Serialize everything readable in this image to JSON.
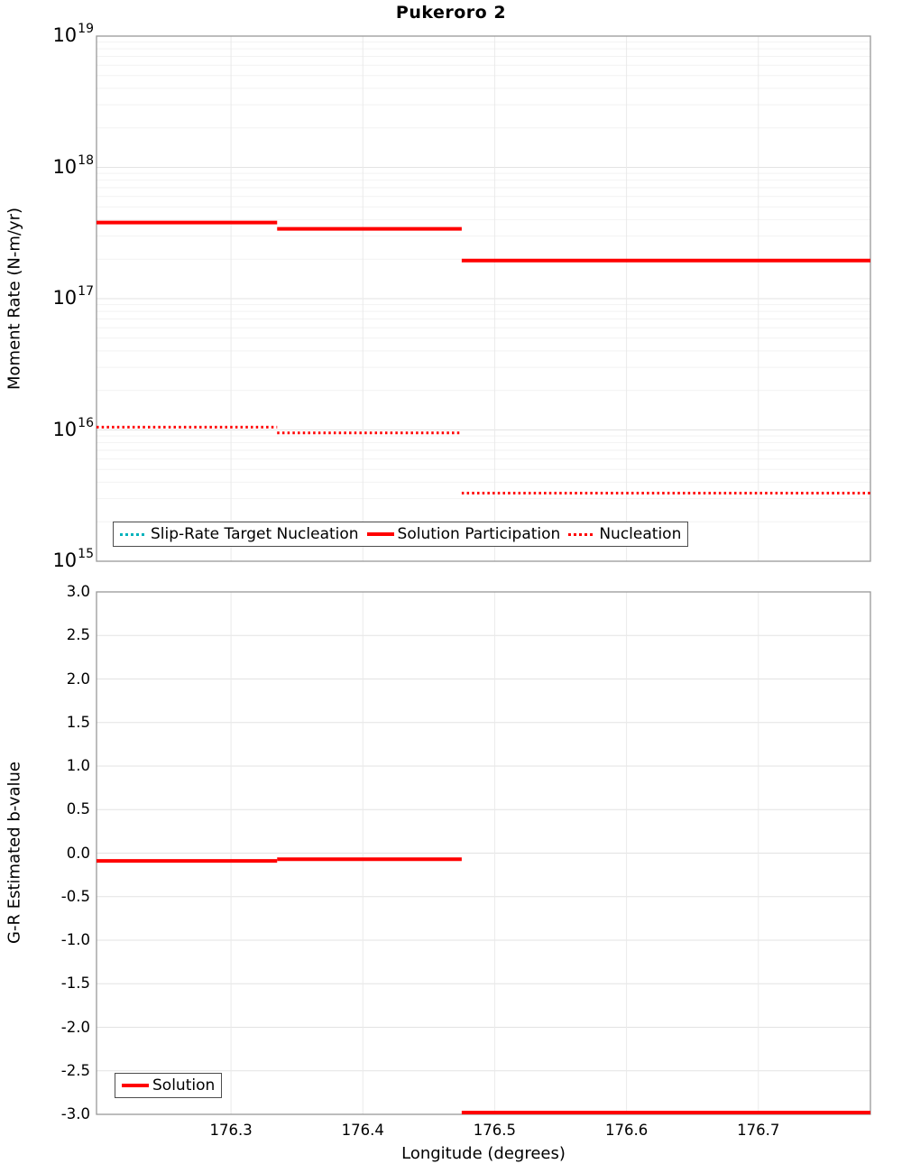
{
  "page_title": "Pukeroro 2",
  "colors": {
    "series_red": "#ff0000",
    "series_cyan": "#00b2bc",
    "grid_major": "#e3e3e3",
    "grid_minor": "#f2f2f2",
    "grid_vertical": "#eaeaea",
    "axis_border": "#999999",
    "legend_border": "#4d4d4d",
    "text": "#000000"
  },
  "chart_data": [
    {
      "type": "line",
      "title": "Pukeroro 2",
      "ylabel": "Moment Rate (N-m/yr)",
      "yscale": "log",
      "ylim": [
        1000000000000000.0,
        1e+19
      ],
      "ytick_exponents": [
        19,
        18,
        17,
        16,
        15
      ],
      "x_range": [
        176.198,
        176.785
      ],
      "xticks": [
        "176.3",
        "176.4",
        "176.5",
        "176.6",
        "176.7"
      ],
      "grid": "on",
      "legend_loc": "lower left",
      "series": [
        {
          "name": "Slip-Rate Target Nucleation",
          "color": "#00b2bc",
          "style": "dotted",
          "width": 3,
          "segments": [],
          "note": "legend entry only; no cyan line visible in plot"
        },
        {
          "name": "Solution Participation",
          "color": "#ff0000",
          "style": "solid",
          "width": 4,
          "segments": [
            {
              "x0": 176.198,
              "x1": 176.335,
              "y": 3.8e+17
            },
            {
              "x0": 176.335,
              "x1": 176.475,
              "y": 3.4e+17
            },
            {
              "x0": 176.475,
              "x1": 176.785,
              "y": 1.95e+17
            }
          ]
        },
        {
          "name": "Nucleation",
          "color": "#ff0000",
          "style": "dotted",
          "width": 3,
          "segments": [
            {
              "x0": 176.198,
              "x1": 176.335,
              "y": 1.05e+16
            },
            {
              "x0": 176.335,
              "x1": 176.475,
              "y": 9500000000000000.0
            },
            {
              "x0": 176.475,
              "x1": 176.785,
              "y": 3300000000000000.0
            }
          ]
        }
      ]
    },
    {
      "type": "line",
      "title": "",
      "ylabel": "G-R Estimated b-value",
      "xlabel": "Longitude (degrees)",
      "yscale": "linear",
      "ylim": [
        -3.0,
        3.0
      ],
      "yticks": [
        "3.0",
        "2.5",
        "2.0",
        "1.5",
        "1.0",
        "0.5",
        "0.0",
        "-0.5",
        "-1.0",
        "-1.5",
        "-2.0",
        "-2.5",
        "-3.0"
      ],
      "x_range": [
        176.198,
        176.785
      ],
      "xticks": [
        "176.3",
        "176.4",
        "176.5",
        "176.6",
        "176.7"
      ],
      "grid": "on",
      "legend_loc": "lower left",
      "series": [
        {
          "name": "Solution",
          "color": "#ff0000",
          "style": "solid",
          "width": 4,
          "segments": [
            {
              "x0": 176.198,
              "x1": 176.335,
              "y": -0.09
            },
            {
              "x0": 176.335,
              "x1": 176.475,
              "y": -0.07
            },
            {
              "x0": 176.475,
              "x1": 176.785,
              "y": -3.0
            }
          ]
        }
      ]
    }
  ]
}
